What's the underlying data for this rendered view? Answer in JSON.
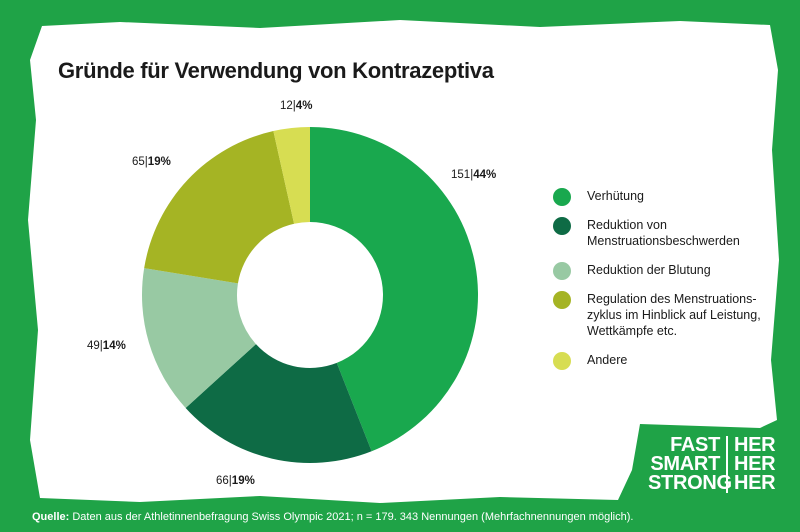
{
  "title": "Gründe für Verwendung von Kontrazeptiva",
  "colors": {
    "background": "#1fa347",
    "panel": "#ffffff"
  },
  "chart_data": {
    "type": "pie",
    "variant": "donut",
    "title": "Gründe für Verwendung von Kontrazeptiva",
    "legend_position": "right",
    "slices": [
      {
        "label": "Verhütung",
        "count": 151,
        "percent": 44,
        "color": "#19a84e",
        "count_text": "151",
        "percent_text": "44%"
      },
      {
        "label": "Reduktion von Menstruationsbeschwerden",
        "count": 66,
        "percent": 19,
        "color": "#0e6b45",
        "count_text": "66",
        "percent_text": "19%"
      },
      {
        "label": "Reduktion der Blutung",
        "count": 49,
        "percent": 14,
        "color": "#98c9a3",
        "count_text": "49",
        "percent_text": "14%"
      },
      {
        "label": "Regulation des Menstruationszyklus im Hinblick auf Leistung, Wettkämpfe etc.",
        "count": 65,
        "percent": 19,
        "color": "#a5b424",
        "count_text": "65",
        "percent_text": "19%"
      },
      {
        "label": "Andere",
        "count": 12,
        "percent": 4,
        "color": "#d7dd52",
        "count_text": "12",
        "percent_text": "4%"
      }
    ]
  },
  "legend": [
    {
      "label": "Verhütung"
    },
    {
      "label": "Reduktion von\nMenstruationsbeschwerden"
    },
    {
      "label": "Reduktion der Blutung"
    },
    {
      "label": "Regulation des Menstruations-\nzyklus im Hinblick auf Leistung,\nWettkämpfe etc."
    },
    {
      "label": "Andere"
    }
  ],
  "brand": {
    "left": [
      "FAST",
      "SMART",
      "STRONG"
    ],
    "right": [
      "HER",
      "HER",
      "HER"
    ]
  },
  "source": {
    "label": "Quelle:",
    "text": " Daten aus der Athletinnenbefragung Swiss Olympic 2021; n = 179. 343 Nennungen (Mehrfachnennungen möglich)."
  }
}
